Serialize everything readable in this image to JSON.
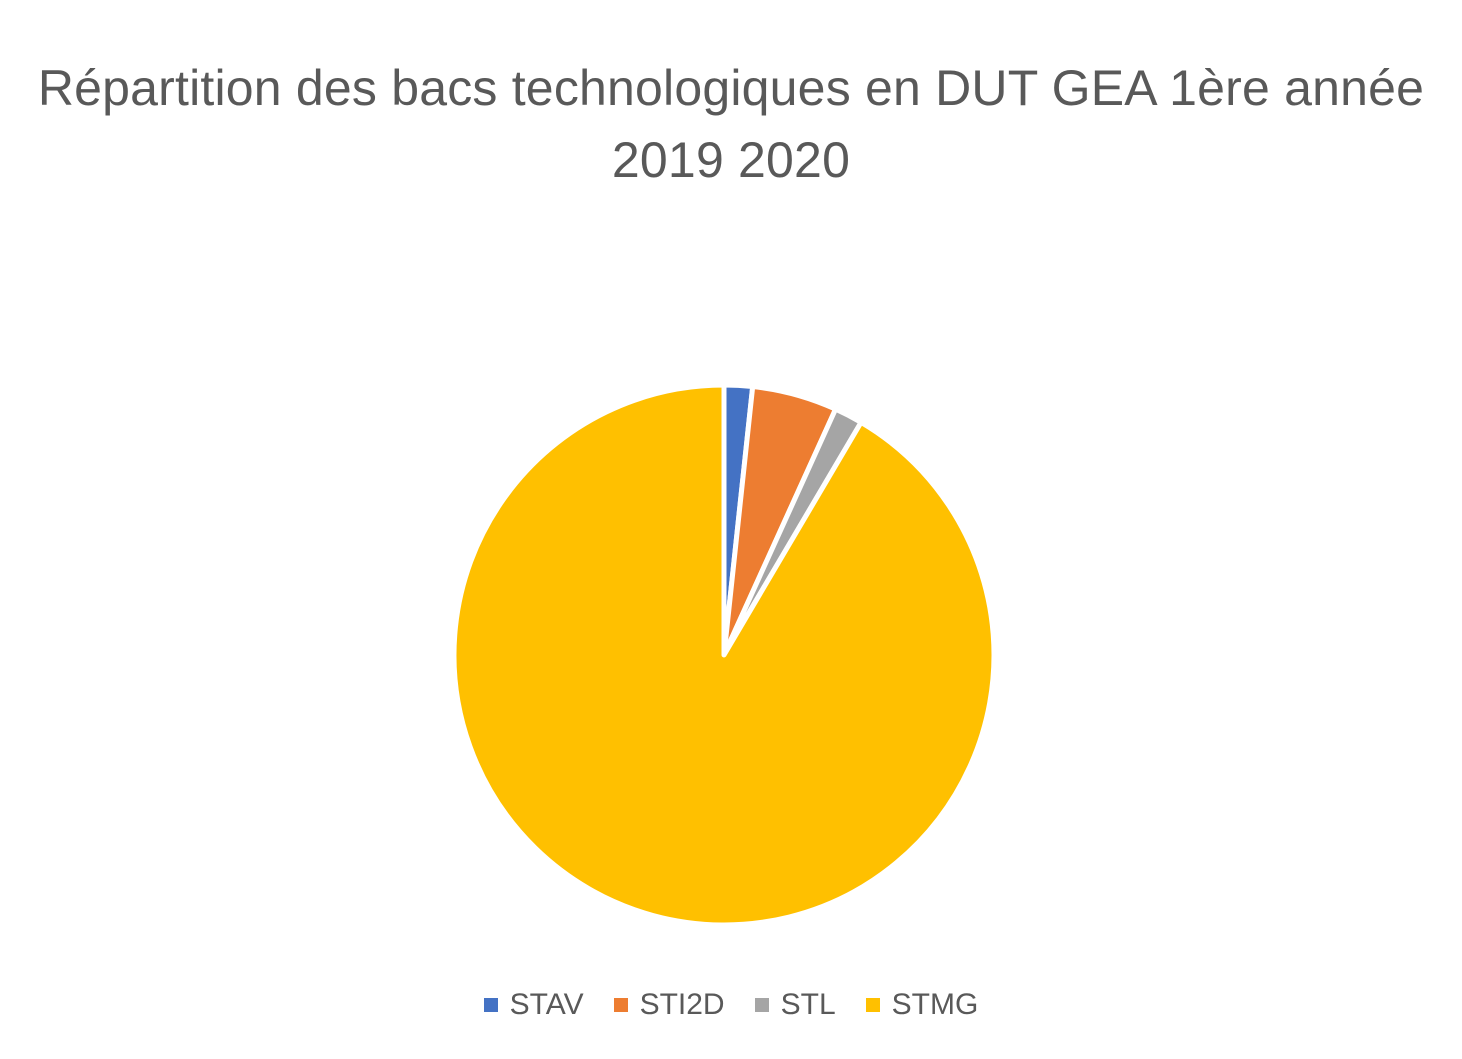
{
  "chart_data": {
    "type": "pie",
    "title_lines": [
      "Répartition des bacs technologiques en DUT GEA 1ère année",
      "2019 2020"
    ],
    "categories": [
      "STAV",
      "STI2D",
      "STL",
      "STMG"
    ],
    "values": [
      2,
      6,
      2,
      108
    ],
    "colors": [
      "#4472C4",
      "#ED7D31",
      "#A5A5A5",
      "#FFC000"
    ],
    "legend_position": "bottom"
  }
}
